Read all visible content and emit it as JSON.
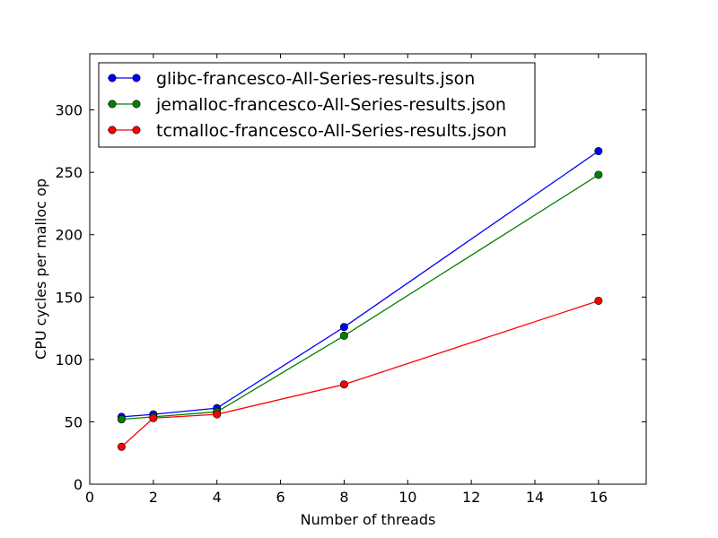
{
  "chart_data": {
    "type": "line",
    "xlabel": "Number of threads",
    "ylabel": "CPU cycles per malloc op",
    "xlim": [
      0,
      17.5
    ],
    "ylim": [
      0,
      345
    ],
    "xticks": [
      0,
      2,
      4,
      6,
      8,
      10,
      12,
      14,
      16
    ],
    "yticks": [
      0,
      50,
      100,
      150,
      200,
      250,
      300
    ],
    "grid": false,
    "legend_position": "top-left",
    "x": [
      1,
      2,
      4,
      8,
      16
    ],
    "series": [
      {
        "name": "glibc-francesco-All-Series-results.json",
        "color": "#0000ff",
        "values": [
          54,
          56,
          61,
          126,
          267
        ]
      },
      {
        "name": "jemalloc-francesco-All-Series-results.json",
        "color": "#008000",
        "values": [
          52,
          54,
          58,
          119,
          248
        ]
      },
      {
        "name": "tcmalloc-francesco-All-Series-results.json",
        "color": "#ff0000",
        "values": [
          30,
          53,
          56,
          80,
          147
        ]
      }
    ]
  }
}
